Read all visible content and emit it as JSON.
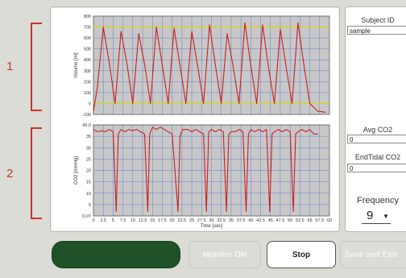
{
  "callouts": [
    {
      "number": "1"
    },
    {
      "number": "2"
    }
  ],
  "chart_data": [
    {
      "type": "line",
      "ylabel": "Volume [ml]",
      "xlabel": "",
      "ylim": [
        -100,
        800
      ],
      "xlim": [
        0,
        60
      ],
      "y_ticks": [
        "800",
        "700",
        "600",
        "500",
        "400",
        "300",
        "200",
        "100",
        "0",
        "-100"
      ],
      "threshold_lines": [
        700,
        0
      ],
      "grid": true,
      "series": [
        {
          "x": [
            0,
            1,
            2.5,
            4,
            5.5,
            7,
            8.5,
            10,
            11.5,
            13,
            14.5,
            16,
            17.5,
            19,
            20.5,
            22,
            23.5,
            25,
            26.5,
            28,
            29.5,
            31,
            32.5,
            34,
            35.5,
            37,
            38.5,
            40,
            41.5,
            43,
            44.5,
            46,
            47.5,
            49,
            50.5,
            52,
            53.5,
            55,
            57,
            59
          ],
          "y": [
            -70,
            150,
            700,
            380,
            0,
            660,
            370,
            0,
            640,
            360,
            0,
            700,
            350,
            0,
            690,
            350,
            0,
            660,
            340,
            0,
            720,
            350,
            0,
            640,
            340,
            0,
            740,
            350,
            0,
            720,
            330,
            0,
            680,
            330,
            0,
            740,
            350,
            0,
            -70,
            -80
          ]
        }
      ]
    },
    {
      "type": "line",
      "ylabel": "CO2 [mmHg]",
      "xlabel": "Time [sec]",
      "ylim": [
        0.07,
        40
      ],
      "xlim": [
        0,
        60
      ],
      "y_ticks": [
        "40.0",
        "35",
        "30",
        "25",
        "20",
        "15",
        "10",
        "5",
        "0.07"
      ],
      "x_ticks": [
        "0",
        "2.5",
        "5",
        "7.5",
        "10",
        "12.5",
        "15",
        "17.5",
        "20",
        "22.5",
        "25",
        "27.5",
        "30",
        "32.5",
        "35",
        "37.5",
        "40",
        "42.5",
        "45",
        "47.5",
        "50",
        "52.5",
        "55",
        "57.5",
        "60"
      ],
      "grid": true,
      "series": [
        {
          "x": [
            0,
            1,
            2,
            3,
            4,
            5,
            5.8,
            6.3,
            7,
            8,
            9,
            10,
            11,
            12,
            13,
            13.8,
            14.3,
            15,
            16,
            17,
            18,
            19,
            20,
            21.5,
            22,
            22.7,
            24,
            25,
            26,
            27,
            28,
            28.7,
            29.3,
            30,
            31,
            32,
            33,
            33.8,
            34.4,
            35,
            36,
            37,
            38,
            38.8,
            39.4,
            40,
            41,
            42,
            43,
            44,
            44.8,
            45.4,
            46,
            47,
            48,
            49,
            50,
            50.8,
            51.4,
            52,
            53,
            54,
            55,
            56,
            57
          ],
          "y": [
            38,
            37,
            37.5,
            37,
            38,
            37,
            2,
            36,
            38,
            37,
            38,
            37.5,
            38,
            37,
            36,
            2,
            36,
            39,
            38,
            39,
            38,
            37,
            36,
            2,
            35,
            38,
            38,
            37,
            38,
            37,
            36,
            2,
            37,
            38,
            37,
            38,
            37,
            2,
            36,
            37,
            37,
            38,
            37,
            2,
            36,
            38,
            37,
            38,
            37,
            38,
            2,
            36,
            37,
            38,
            37,
            38,
            37,
            2,
            36,
            37,
            38,
            37,
            38,
            36,
            36
          ]
        }
      ]
    }
  ],
  "side_panel": {
    "subject_id_label": "Subject ID",
    "subject_id_value": "sample",
    "avg_co2_label": "Avg CO2",
    "avg_co2_value": "0",
    "endtidal_co2_label": "EndTidal CO2",
    "endtidal_co2_value": "0",
    "frequency_label": "Frequency",
    "frequency_value": "9"
  },
  "buttons": {
    "monitor_label": "Monitor ON",
    "stop_label": "Stop",
    "save_label": "Save and Exit"
  },
  "colors": {
    "trace": "#cc1f1f",
    "threshold": "#d8d800",
    "grid": "#4a6fd1",
    "plot_bg": "#c8c8c8",
    "status_green": "#1f5226",
    "accent_red": "#c2352d"
  }
}
